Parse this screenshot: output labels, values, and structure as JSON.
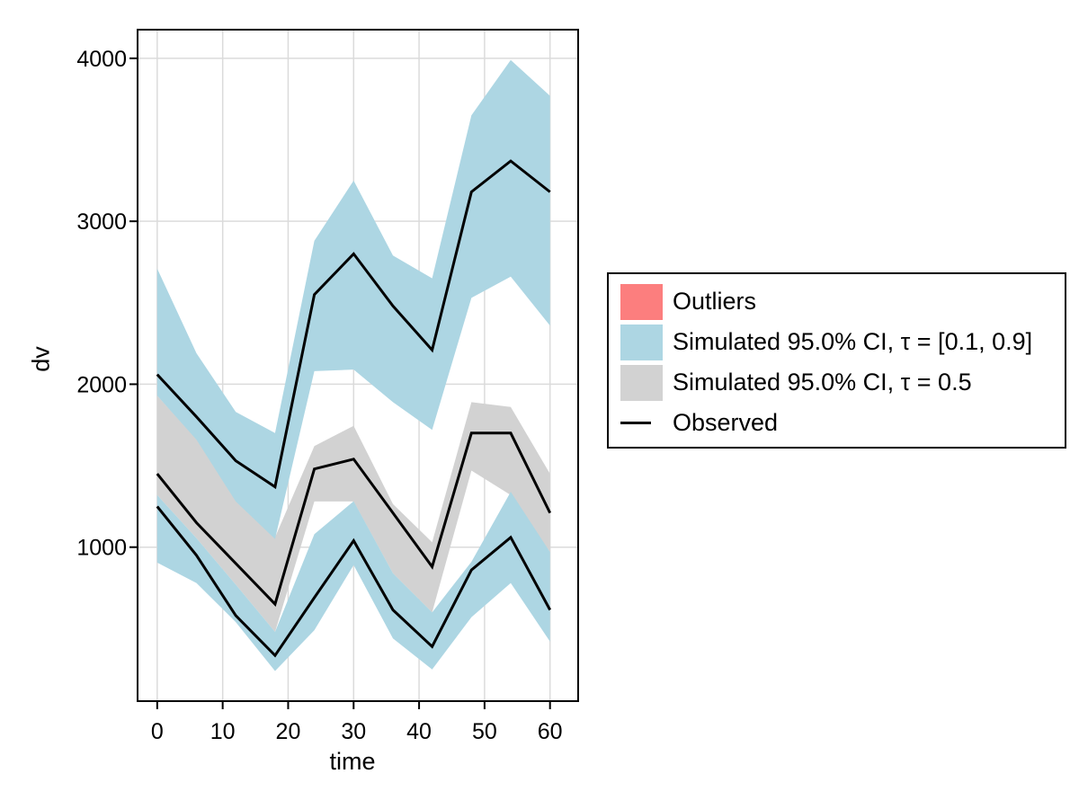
{
  "figure": {
    "background": "#ffffff"
  },
  "colors": {
    "band_blue": "#ADD6E3",
    "band_gray": "#D2D2D2",
    "outlier_red": "#FC7E7E",
    "observed_line": "#000000",
    "grid": "#DBDBDB",
    "spine": "#000000"
  },
  "legend": {
    "items": [
      {
        "swatch": "square",
        "color": "#FC7E7E",
        "label": "Outliers"
      },
      {
        "swatch": "square",
        "color": "#ADD6E3",
        "label": "Simulated 95.0% CI, τ = [0.1, 0.9]"
      },
      {
        "swatch": "square",
        "color": "#D2D2D2",
        "label": "Simulated 95.0% CI, τ = 0.5"
      },
      {
        "swatch": "line",
        "color": "#000000",
        "label": "Observed"
      }
    ]
  },
  "chart_data": {
    "type": "line",
    "title": "",
    "xlabel": "time",
    "ylabel": "dv",
    "xlim": [
      -3,
      64.3
    ],
    "ylim": [
      55,
      4176
    ],
    "xticks": [
      0,
      10,
      20,
      30,
      40,
      50,
      60
    ],
    "yticks": [
      1000,
      2000,
      3000,
      4000
    ],
    "grid": true,
    "legend_position": "right-outside",
    "x": [
      0,
      6,
      12,
      18,
      24,
      30,
      36,
      42,
      48,
      54,
      60
    ],
    "bands": [
      {
        "name": "Simulated 95.0% CI, τ = 0.5",
        "color_key": "band_gray",
        "upper": [
          1930,
          1665,
          1285,
          1060,
          1620,
          1745,
          1265,
          1030,
          1890,
          1860,
          1450
        ],
        "lower": [
          1320,
          1055,
          770,
          480,
          1280,
          1280,
          840,
          600,
          1470,
          1320,
          970
        ]
      },
      {
        "name": "Simulated 95.0% CI, τ = 0.9",
        "color_key": "band_blue",
        "upper": [
          2710,
          2190,
          1830,
          1700,
          2880,
          3250,
          2790,
          2650,
          3650,
          3990,
          3770
        ],
        "lower": [
          1930,
          1660,
          1280,
          1050,
          2080,
          2090,
          1890,
          1720,
          2530,
          2660,
          2360
        ]
      },
      {
        "name": "Simulated 95.0% CI, τ = 0.1",
        "color_key": "band_blue",
        "upper": [
          1320,
          1055,
          770,
          480,
          1080,
          1282,
          840,
          600,
          910,
          1340,
          970
        ],
        "lower": [
          905,
          780,
          540,
          240,
          490,
          890,
          440,
          250,
          570,
          780,
          420
        ]
      }
    ],
    "series": [
      {
        "name": "Observed, τ = 0.9",
        "values": [
          2060,
          1800,
          1530,
          1370,
          2550,
          2800,
          2480,
          2210,
          3180,
          3370,
          3180
        ]
      },
      {
        "name": "Observed, τ = 0.5",
        "values": [
          1450,
          1150,
          900,
          650,
          1480,
          1540,
          1210,
          880,
          1700,
          1700,
          1210
        ]
      },
      {
        "name": "Observed, τ = 0.1",
        "values": [
          1250,
          950,
          580,
          335,
          690,
          1040,
          615,
          390,
          860,
          1060,
          615
        ]
      }
    ]
  }
}
